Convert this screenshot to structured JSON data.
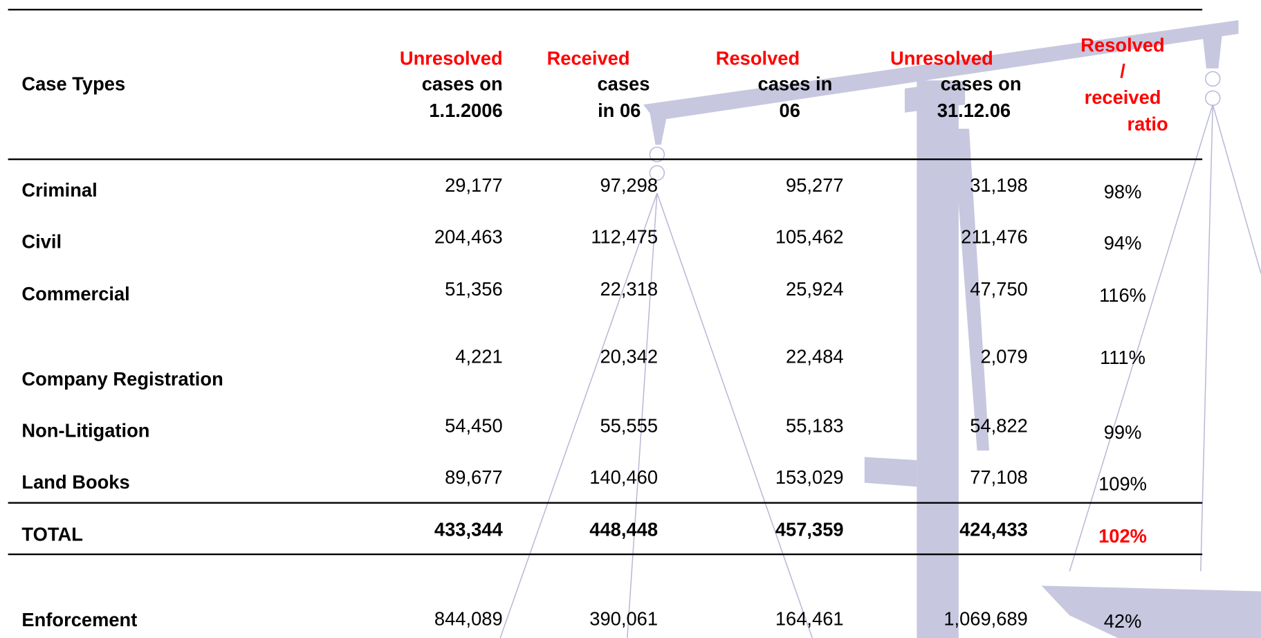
{
  "table": {
    "headers": [
      {
        "black": [
          "Case Types"
        ]
      },
      {
        "red": [
          "Unresolved"
        ],
        "black": [
          "cases on",
          "1.1.2006"
        ]
      },
      {
        "red": [
          "Received"
        ],
        "black": [
          "cases",
          "in 06"
        ]
      },
      {
        "red": [
          "Resolved"
        ],
        "black": [
          "cases in",
          "06"
        ]
      },
      {
        "red": [
          "Unresolved"
        ],
        "black": [
          "cases on",
          "31.12.06"
        ]
      },
      {
        "red": [
          "Resolved",
          "/",
          "received",
          "ratio"
        ]
      }
    ],
    "rows": [
      {
        "label": "Criminal",
        "values": [
          "29,177",
          "97,298",
          "95,277",
          "31,198",
          "98%"
        ]
      },
      {
        "label": "Civil",
        "values": [
          "204,463",
          "112,475",
          "105,462",
          "211,476",
          "94%"
        ]
      },
      {
        "label": "Commercial",
        "values": [
          "51,356",
          "22,318",
          "25,924",
          "47,750",
          "116%"
        ]
      },
      {
        "label": "Company Registration",
        "values": [
          "4,221",
          "20,342",
          "22,484",
          "2,079",
          "111%"
        ]
      },
      {
        "label": "Non-Litigation",
        "values": [
          "54,450",
          "55,555",
          "55,183",
          "54,822",
          "99%"
        ]
      },
      {
        "label": "Land Books",
        "values": [
          "89,677",
          "140,460",
          "153,029",
          "77,108",
          "109%"
        ]
      }
    ],
    "total": {
      "label": "TOTAL",
      "values": [
        "433,344",
        "448,448",
        "457,359",
        "424,433",
        "102%"
      ]
    },
    "extra_rows": [
      {
        "label": "Enforcement",
        "values": [
          "844,089",
          "390,061",
          "164,461",
          "1,069,689",
          "42%"
        ]
      }
    ]
  }
}
